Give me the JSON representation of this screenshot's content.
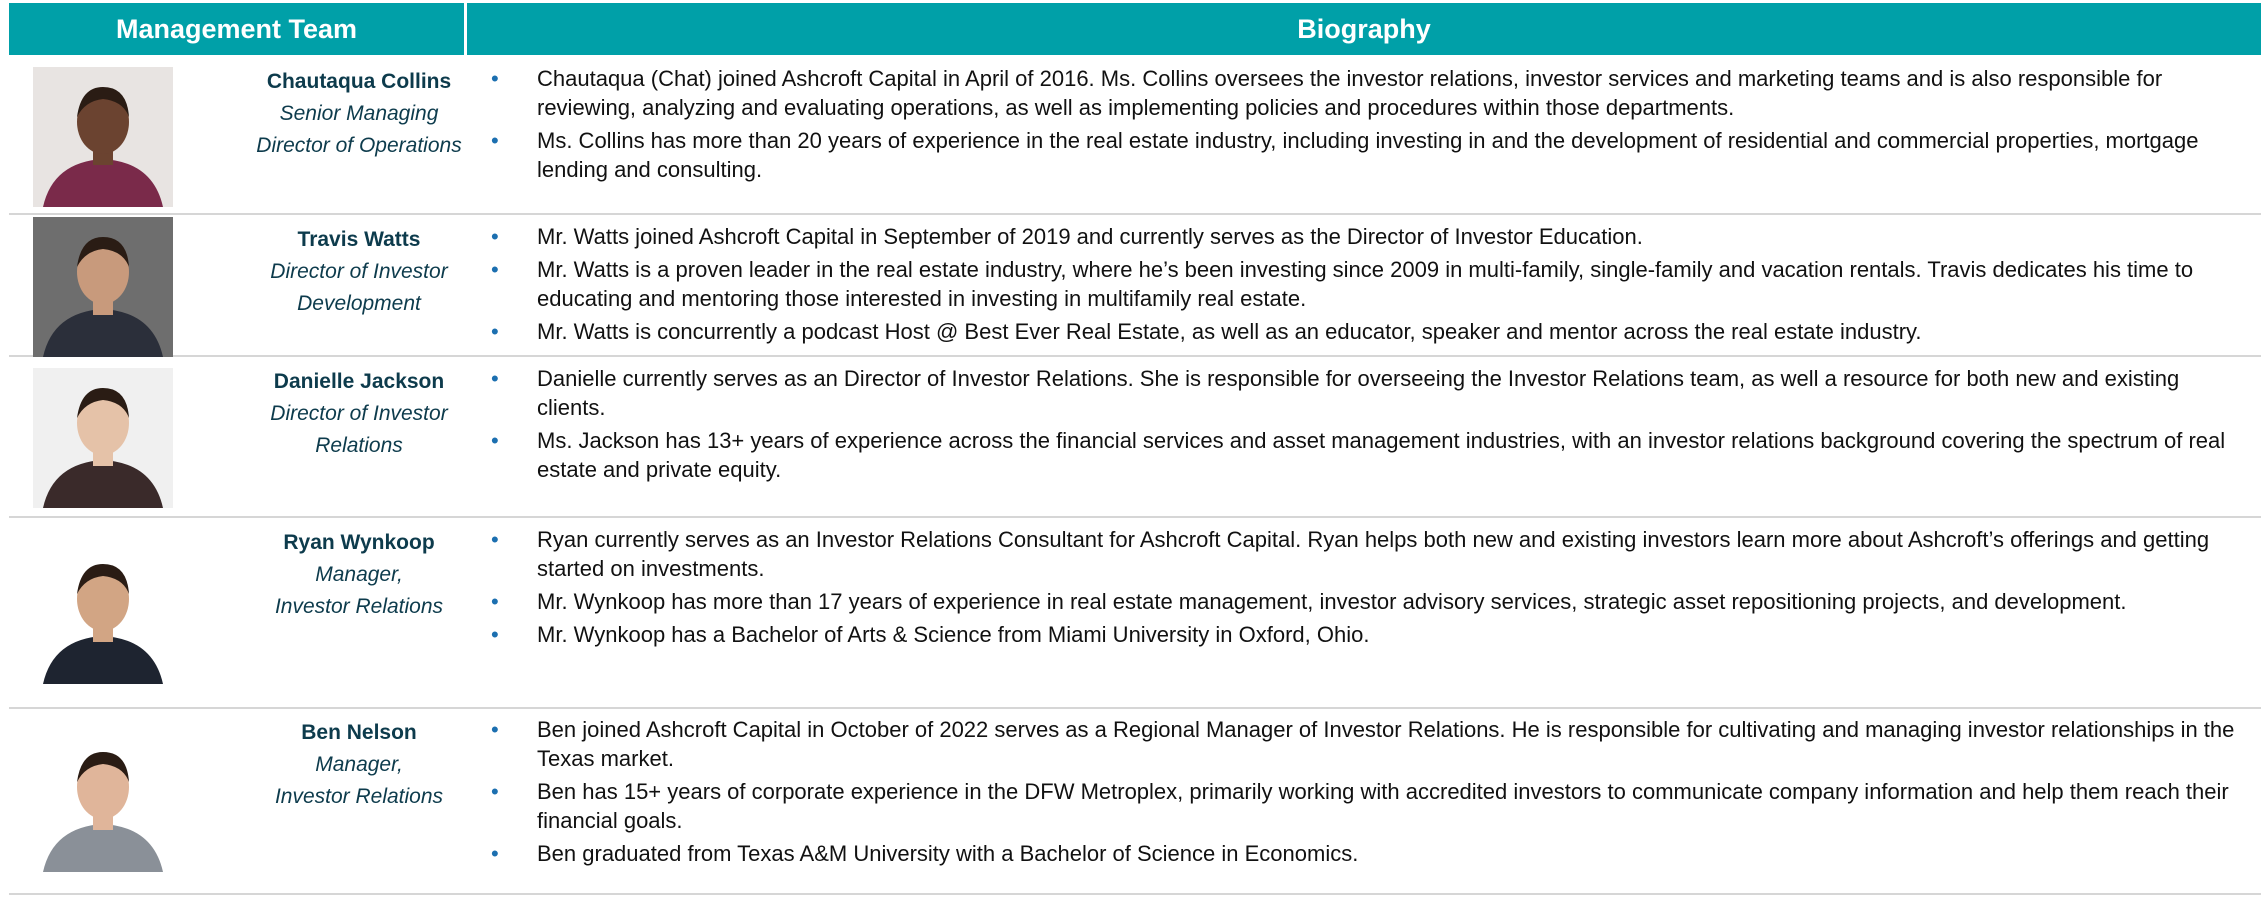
{
  "header": {
    "left": "Management Team",
    "right": "Biography"
  },
  "members": [
    {
      "name": "Chautaqua Collins",
      "title": [
        "Senior Managing",
        "Director of Operations"
      ],
      "bio": [
        "Chautaqua (Chat) joined Ashcroft Capital in April of 2016. Ms. Collins oversees the investor relations, investor services and marketing teams and is also responsible for reviewing, analyzing and evaluating operations, as well as implementing policies and procedures within those departments.",
        "Ms. Collins has more than 20 years of experience in the real estate industry, including investing in and the development of residential and commercial properties, mortgage lending and consulting."
      ]
    },
    {
      "name": "Travis Watts",
      "title": [
        "Director of Investor",
        "Development"
      ],
      "bio": [
        "Mr. Watts joined Ashcroft Capital in September of 2019 and currently serves as the Director of Investor Education.",
        "Mr. Watts is a proven leader in the real estate industry, where he’s been investing since 2009 in multi-family, single-family and vacation rentals. Travis dedicates his time to educating and mentoring those interested in investing in multifamily real estate.",
        "Mr. Watts is concurrently a podcast Host @ Best Ever Real Estate, as well as an educator, speaker and mentor across the real estate industry."
      ]
    },
    {
      "name": "Danielle Jackson",
      "title": [
        "Director of Investor",
        "Relations"
      ],
      "bio": [
        "Danielle currently serves as an Director of Investor Relations. She is responsible for overseeing the Investor Relations team, as well a resource for both new and existing clients.",
        "Ms. Jackson has 13+ years of experience across the financial services and asset management industries, with an investor relations background covering the spectrum of real estate and private equity."
      ]
    },
    {
      "name": "Ryan Wynkoop",
      "title": [
        "Manager,",
        "Investor Relations"
      ],
      "bio": [
        "Ryan currently serves as an Investor Relations Consultant for Ashcroft Capital. Ryan helps both new and existing investors learn more about Ashcroft’s offerings and getting started on investments.",
        "Mr. Wynkoop has more than 17 years of experience in real estate management, investor advisory services, strategic asset repositioning projects, and development.",
        "Mr. Wynkoop  has a Bachelor of Arts & Science from Miami University in Oxford, Ohio."
      ]
    },
    {
      "name": "Ben Nelson",
      "title": [
        "Manager,",
        "Investor Relations"
      ],
      "bio": [
        "Ben joined Ashcroft Capital in October of 2022 serves as a Regional Manager of Investor Relations. He is responsible for cultivating and managing investor relationships in the Texas market.",
        "Ben has 15+ years of corporate experience in the DFW Metroplex, primarily working with accredited investors to communicate company information and help them reach their financial goals.",
        "Ben graduated from Texas A&M University with a Bachelor of Science in Economics."
      ]
    }
  ]
}
